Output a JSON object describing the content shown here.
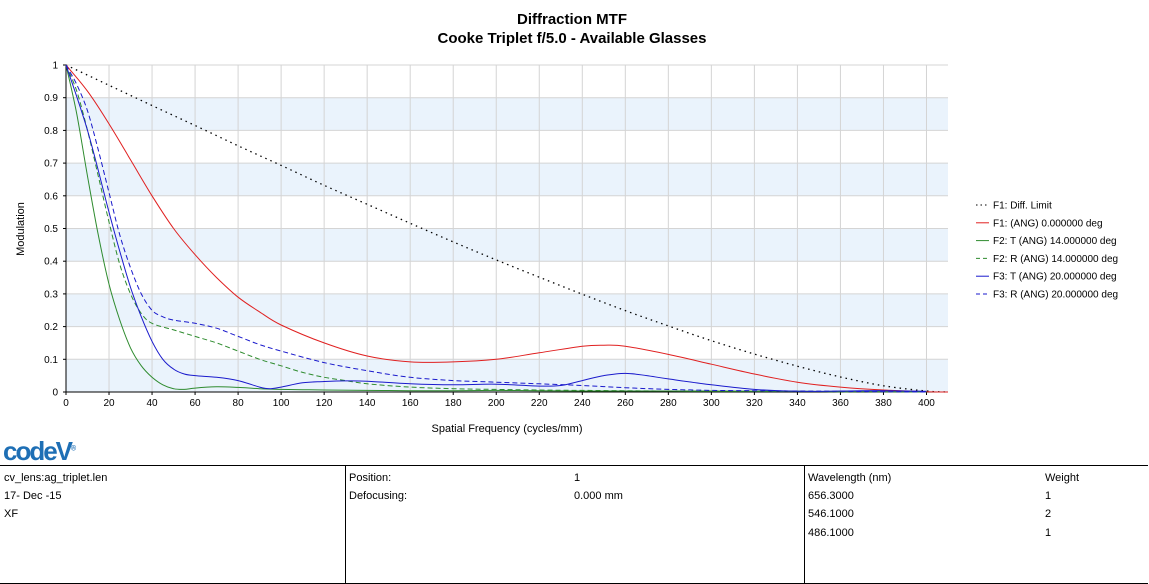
{
  "chart_data": {
    "type": "line",
    "title": "Diffraction MTF",
    "subtitle": "Cooke Triplet f/5.0 - Available Glasses",
    "xlabel": "Spatial Frequency (cycles/mm)",
    "ylabel": "Modulation",
    "xlim": [
      0,
      410
    ],
    "ylim": [
      0,
      1
    ],
    "xticks": [
      0,
      20,
      40,
      60,
      80,
      100,
      120,
      140,
      160,
      180,
      200,
      220,
      240,
      260,
      280,
      300,
      320,
      340,
      360,
      380,
      400
    ],
    "yticks": [
      0,
      0.1,
      0.2,
      0.3,
      0.4,
      0.5,
      0.6,
      0.7,
      0.8,
      0.9,
      1
    ],
    "grid": true,
    "legend_position": "right",
    "series": [
      {
        "name": "F1: Diff. Limit",
        "color": "#000000",
        "dash": "dotted",
        "x": [
          0,
          20,
          40,
          60,
          80,
          100,
          120,
          140,
          160,
          180,
          200,
          220,
          240,
          260,
          280,
          300,
          320,
          340,
          360,
          380,
          400,
          410
        ],
        "y": [
          1,
          0.938,
          0.876,
          0.815,
          0.753,
          0.693,
          0.632,
          0.574,
          0.516,
          0.459,
          0.404,
          0.351,
          0.299,
          0.249,
          0.202,
          0.157,
          0.116,
          0.079,
          0.046,
          0.019,
          0.003,
          0
        ]
      },
      {
        "name": "F1: (ANG) 0.000000 deg",
        "color": "#e02020",
        "dash": "solid",
        "x": [
          0,
          10,
          20,
          30,
          40,
          50,
          60,
          70,
          80,
          90,
          100,
          120,
          140,
          160,
          180,
          200,
          220,
          240,
          250,
          260,
          280,
          300,
          320,
          340,
          360,
          380,
          400,
          410
        ],
        "y": [
          1,
          0.92,
          0.82,
          0.71,
          0.6,
          0.5,
          0.42,
          0.35,
          0.29,
          0.245,
          0.205,
          0.15,
          0.11,
          0.092,
          0.092,
          0.1,
          0.12,
          0.14,
          0.143,
          0.14,
          0.115,
          0.085,
          0.055,
          0.03,
          0.015,
          0.006,
          0.001,
          0
        ]
      },
      {
        "name": "F2: T (ANG) 14.000000 deg",
        "color": "#2e8b2e",
        "dash": "solid",
        "x": [
          0,
          5,
          10,
          15,
          20,
          25,
          30,
          35,
          40,
          45,
          50,
          55,
          60,
          70,
          80,
          90,
          100,
          110,
          120,
          140,
          160,
          180,
          200,
          220,
          240,
          260,
          280,
          300,
          320,
          340,
          360,
          380,
          400
        ],
        "y": [
          1,
          0.85,
          0.66,
          0.48,
          0.33,
          0.22,
          0.135,
          0.08,
          0.045,
          0.022,
          0.01,
          0.008,
          0.012,
          0.016,
          0.014,
          0.01,
          0.008,
          0.007,
          0.006,
          0.005,
          0.004,
          0.004,
          0.005,
          0.004,
          0.003,
          0.003,
          0.003,
          0.002,
          0.002,
          0.002,
          0.001,
          0.001,
          0
        ]
      },
      {
        "name": "F2: R (ANG) 14.000000 deg",
        "color": "#2e8b2e",
        "dash": "dashed",
        "x": [
          0,
          5,
          10,
          15,
          20,
          25,
          30,
          35,
          40,
          50,
          60,
          70,
          80,
          90,
          100,
          110,
          120,
          130,
          140,
          160,
          180,
          200,
          220,
          240,
          260,
          280,
          300,
          320,
          340,
          360,
          380,
          400
        ],
        "y": [
          1,
          0.92,
          0.8,
          0.66,
          0.52,
          0.39,
          0.3,
          0.24,
          0.21,
          0.19,
          0.17,
          0.15,
          0.125,
          0.1,
          0.08,
          0.06,
          0.045,
          0.035,
          0.025,
          0.015,
          0.01,
          0.008,
          0.006,
          0.005,
          0.004,
          0.003,
          0.003,
          0.002,
          0.002,
          0.001,
          0.001,
          0
        ]
      },
      {
        "name": "F3: T (ANG) 20.000000 deg",
        "color": "#1a1acc",
        "dash": "solid",
        "x": [
          0,
          10,
          20,
          25,
          30,
          35,
          40,
          45,
          50,
          55,
          60,
          70,
          80,
          90,
          95,
          100,
          110,
          120,
          130,
          140,
          160,
          180,
          200,
          220,
          230,
          240,
          250,
          260,
          270,
          280,
          300,
          320,
          340,
          360,
          380,
          400
        ],
        "y": [
          1,
          0.8,
          0.55,
          0.43,
          0.32,
          0.23,
          0.155,
          0.1,
          0.07,
          0.055,
          0.05,
          0.045,
          0.035,
          0.015,
          0.01,
          0.015,
          0.028,
          0.032,
          0.034,
          0.033,
          0.025,
          0.022,
          0.024,
          0.018,
          0.02,
          0.035,
          0.05,
          0.057,
          0.05,
          0.04,
          0.022,
          0.008,
          0.002,
          0.003,
          0.004,
          0.002
        ]
      },
      {
        "name": "F3: R (ANG) 20.000000 deg",
        "color": "#1a1acc",
        "dash": "dashed",
        "x": [
          0,
          5,
          10,
          15,
          20,
          25,
          30,
          35,
          40,
          45,
          50,
          60,
          70,
          80,
          90,
          100,
          120,
          140,
          160,
          180,
          200,
          220,
          240,
          260,
          280,
          300,
          320,
          340,
          360,
          380,
          400
        ],
        "y": [
          1,
          0.94,
          0.86,
          0.74,
          0.61,
          0.48,
          0.38,
          0.3,
          0.25,
          0.23,
          0.22,
          0.21,
          0.195,
          0.17,
          0.145,
          0.125,
          0.09,
          0.065,
          0.045,
          0.035,
          0.03,
          0.025,
          0.02,
          0.013,
          0.008,
          0.005,
          0.004,
          0.003,
          0.002,
          0.001,
          0
        ]
      }
    ]
  },
  "logo": "codeV",
  "info": {
    "file": "cv_lens:ag_triplet.len",
    "date": "17- Dec -15",
    "mode": "XF",
    "position_label": "Position:",
    "position_value": "1",
    "defocus_label": "Defocusing:",
    "defocus_value": "0.000 mm",
    "wavelength_header": "Wavelength (nm)",
    "weight_header": "Weight",
    "wavelengths": [
      {
        "wl": "656.3000",
        "w": "1"
      },
      {
        "wl": "546.1000",
        "w": "2"
      },
      {
        "wl": "486.1000",
        "w": "1"
      }
    ]
  }
}
